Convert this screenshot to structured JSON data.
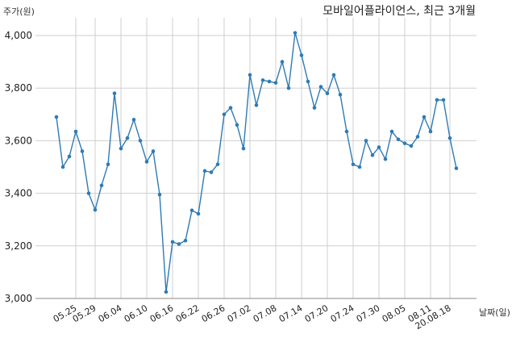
{
  "chart_data": {
    "type": "line",
    "title": "모바일어플라이언스, 최근 3개월",
    "ylabel": "주가(원)",
    "xlabel": "날짜(일)",
    "ylim": [
      3000,
      4000
    ],
    "yticks": [
      "3,000",
      "3,200",
      "3,400",
      "3,600",
      "3,800",
      "4,000"
    ],
    "ytick_values": [
      3000,
      3200,
      3400,
      3600,
      3800,
      4000
    ],
    "x_ticks": [
      "05.25",
      "05.29",
      "06.04",
      "06.10",
      "06.16",
      "06.22",
      "06.26",
      "07.02",
      "07.08",
      "07.14",
      "07.20",
      "07.24",
      "07.30",
      "08.05",
      "08.11",
      "20.08.18"
    ],
    "x_tick_index": [
      3,
      6,
      10,
      14,
      18,
      22,
      26,
      30,
      34,
      38,
      42,
      46,
      50,
      54,
      58,
      61
    ],
    "grid": true,
    "colors": {
      "line": "#2f7bb4",
      "marker": "#2f7bb4"
    },
    "series": [
      {
        "values": [
          3690,
          3500,
          3540,
          3635,
          3560,
          3400,
          3337,
          3430,
          3510,
          3780,
          3570,
          3610,
          3680,
          3600,
          3520,
          3560,
          3395,
          3025,
          3215,
          3207,
          3220,
          3335,
          3322,
          3485,
          3480,
          3510,
          3700,
          3725,
          3660,
          3570,
          3850,
          3735,
          3830,
          3825,
          3820,
          3900,
          3800,
          4010,
          3925,
          3825,
          3725,
          3805,
          3780,
          3850,
          3775,
          3635,
          3510,
          3500,
          3600,
          3545,
          3575,
          3530,
          3635,
          3605,
          3590,
          3580,
          3615,
          3690,
          3635,
          3755,
          3755,
          3610,
          3495
        ]
      }
    ]
  }
}
